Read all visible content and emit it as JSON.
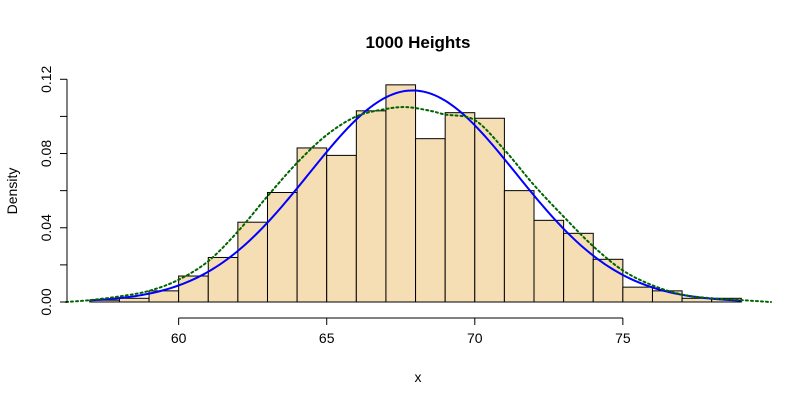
{
  "chart_data": {
    "type": "histogram",
    "title": "1000 Heights",
    "xlabel": "x",
    "ylabel": "Density",
    "xlim": [
      56.5,
      79.8
    ],
    "ylim": [
      0,
      0.125
    ],
    "xticks": [
      60,
      65,
      70,
      75
    ],
    "yticks": [
      0.0,
      0.04,
      0.08,
      0.12
    ],
    "ytick_labels": [
      "0.00",
      "0.04",
      "0.08",
      "0.12"
    ],
    "grid": false,
    "bar_color": "#F5DEB3",
    "bar_edge_color": "#000000",
    "bins": [
      {
        "x0": 57,
        "x1": 58,
        "density": 0.001
      },
      {
        "x0": 58,
        "x1": 59,
        "density": 0.002
      },
      {
        "x0": 59,
        "x1": 60,
        "density": 0.006
      },
      {
        "x0": 60,
        "x1": 61,
        "density": 0.014
      },
      {
        "x0": 61,
        "x1": 62,
        "density": 0.024
      },
      {
        "x0": 62,
        "x1": 63,
        "density": 0.043
      },
      {
        "x0": 63,
        "x1": 64,
        "density": 0.059
      },
      {
        "x0": 64,
        "x1": 65,
        "density": 0.083
      },
      {
        "x0": 65,
        "x1": 66,
        "density": 0.079
      },
      {
        "x0": 66,
        "x1": 67,
        "density": 0.103
      },
      {
        "x0": 67,
        "x1": 68,
        "density": 0.117
      },
      {
        "x0": 68,
        "x1": 69,
        "density": 0.088
      },
      {
        "x0": 69,
        "x1": 70,
        "density": 0.102
      },
      {
        "x0": 70,
        "x1": 71,
        "density": 0.099
      },
      {
        "x0": 71,
        "x1": 72,
        "density": 0.06
      },
      {
        "x0": 72,
        "x1": 73,
        "density": 0.044
      },
      {
        "x0": 73,
        "x1": 74,
        "density": 0.037
      },
      {
        "x0": 74,
        "x1": 75,
        "density": 0.023
      },
      {
        "x0": 75,
        "x1": 76,
        "density": 0.008
      },
      {
        "x0": 76,
        "x1": 77,
        "density": 0.006
      },
      {
        "x0": 77,
        "x1": 78,
        "density": 0.002
      },
      {
        "x0": 78,
        "x1": 79,
        "density": 0.002
      }
    ],
    "series": [
      {
        "type": "normal-curve",
        "color": "#0000FF",
        "style": "solid",
        "mean": 67.9,
        "sd": 3.5
      },
      {
        "type": "density-estimate",
        "color": "#006400",
        "style": "dotted",
        "x": [
          56.2,
          57,
          58,
          59,
          60,
          61,
          62,
          63,
          64,
          65,
          66,
          67,
          67.7,
          68.5,
          69,
          70,
          71,
          72,
          73,
          74,
          75,
          76,
          77,
          78,
          79,
          80
        ],
        "y": [
          0.0,
          0.001,
          0.003,
          0.006,
          0.012,
          0.022,
          0.038,
          0.057,
          0.075,
          0.09,
          0.1,
          0.104,
          0.105,
          0.103,
          0.101,
          0.098,
          0.082,
          0.063,
          0.046,
          0.03,
          0.017,
          0.009,
          0.004,
          0.002,
          0.001,
          0.0
        ]
      }
    ]
  }
}
